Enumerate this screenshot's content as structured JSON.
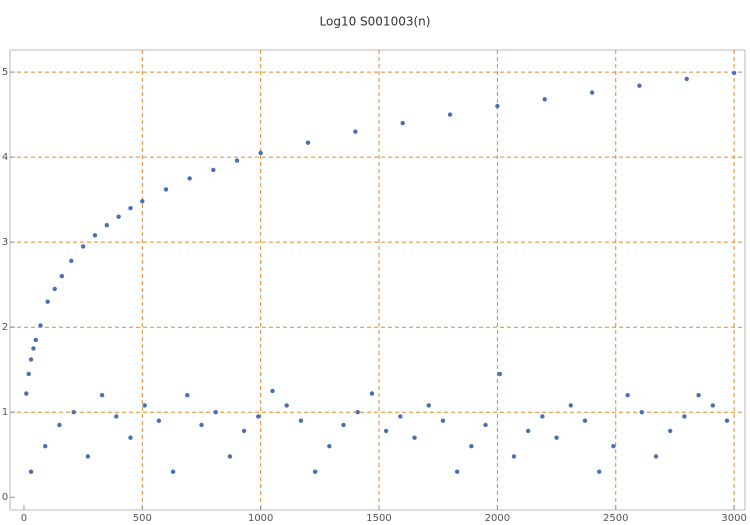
{
  "chart_data": {
    "type": "scatter",
    "title": "Log10 S001003(n)",
    "xlim": [
      -59,
      3046
    ],
    "ylim": [
      -0.15,
      5.26
    ],
    "xticks": [
      0,
      500,
      1000,
      1500,
      2000,
      2500,
      3000
    ],
    "yticks": [
      0,
      1,
      2,
      3,
      4,
      5
    ],
    "grid": true,
    "grid_color": "#e08a2c",
    "series": [
      {
        "color": "#4a6fb5",
        "x": [
          10,
          20,
          30,
          40,
          50,
          70,
          100,
          130,
          160,
          200,
          250,
          300,
          350,
          400,
          450,
          500,
          600,
          700,
          800,
          900,
          1000,
          1200,
          1400,
          1600,
          1800,
          2000,
          2200,
          2400,
          2600,
          2800,
          3000
        ],
        "values": [
          1.22,
          1.45,
          1.62,
          1.75,
          1.85,
          2.02,
          2.3,
          2.45,
          2.6,
          2.78,
          2.95,
          3.08,
          3.2,
          3.3,
          3.4,
          3.48,
          3.62,
          3.75,
          3.85,
          3.96,
          4.05,
          4.17,
          4.3,
          4.4,
          4.5,
          4.6,
          4.68,
          4.76,
          4.84,
          4.92,
          4.99
        ]
      },
      {
        "color": "#4a6fb5",
        "x": [
          30,
          90,
          150,
          210,
          270,
          330,
          390,
          450,
          510,
          570,
          630,
          690,
          750,
          810,
          870,
          930,
          990,
          1050,
          1110,
          1170,
          1230,
          1290,
          1350,
          1410,
          1470,
          1530,
          1590,
          1650,
          1710,
          1770,
          1830,
          1890,
          1950,
          2010,
          2070,
          2130,
          2190,
          2250,
          2310,
          2370,
          2430,
          2490,
          2550,
          2610,
          2670,
          2730,
          2790,
          2850,
          2910,
          2970
        ],
        "values": [
          0.3,
          0.6,
          0.85,
          1,
          0.48,
          1.2,
          0.95,
          0.7,
          1.08,
          0.9,
          0.3,
          1.2,
          0.85,
          1,
          0.48,
          0.78,
          0.95,
          1.25,
          1.08,
          0.9,
          0.3,
          0.6,
          0.85,
          1,
          1.22,
          0.78,
          0.95,
          0.7,
          1.08,
          0.9,
          0.3,
          0.6,
          0.85,
          1.45,
          0.48,
          0.78,
          0.95,
          0.7,
          1.08,
          0.9,
          0.3,
          0.6,
          1.2,
          1,
          0.48,
          0.78,
          0.95,
          1.2,
          1.08,
          0.9
        ]
      }
    ]
  }
}
